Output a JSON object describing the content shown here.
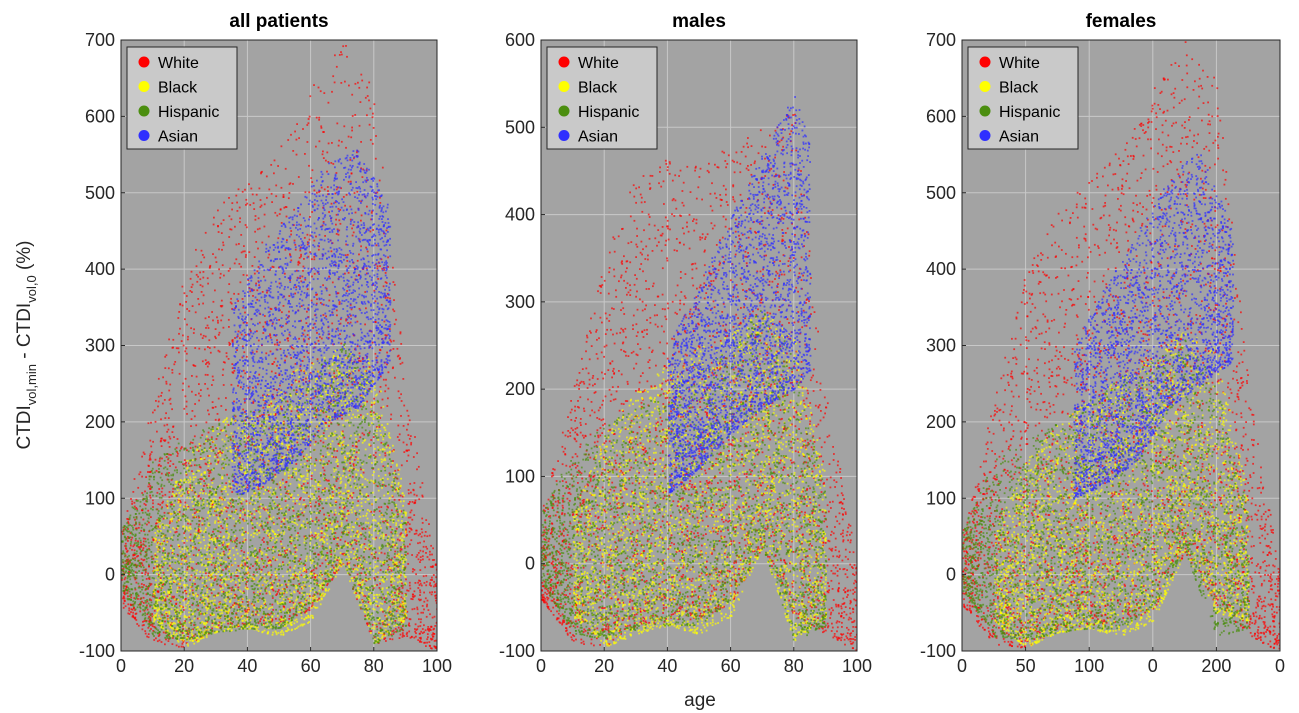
{
  "figure": {
    "shared_xlabel": "age",
    "shared_ylabel": {
      "main1": "CTDI",
      "sub1": "vol,min",
      "mid": " - CTDI",
      "sub2": "vol,0",
      "tail": " (%)"
    },
    "colors": {
      "White": "#ff0000",
      "Black": "#ffff00",
      "Hispanic": "#4b8e0f",
      "Asian": "#2f2fff",
      "axes_bg": "#a3a3a3",
      "grid": "#c8c8c8"
    }
  },
  "chart_data": [
    {
      "type": "scatter",
      "title": "all patients",
      "xlabel": "",
      "ylabel": "CTDI vol,min - CTDI vol,0 (%)",
      "xlim": [
        0,
        100
      ],
      "ylim": [
        -100,
        700
      ],
      "xticks": [
        "0",
        "20",
        "40",
        "60",
        "80",
        "100"
      ],
      "yticks": [
        "-100",
        "0",
        "100",
        "200",
        "300",
        "400",
        "500",
        "600",
        "700"
      ],
      "grid": true,
      "legend_position": "top-left",
      "series": [
        {
          "name": "White",
          "envelope": {
            "x": [
              0,
              10,
              20,
              30,
              40,
              50,
              60,
              70,
              80,
              90,
              100
            ],
            "low": [
              -40,
              -90,
              -95,
              -70,
              -65,
              -62,
              -45,
              15,
              -90,
              -80,
              -100
            ],
            "high": [
              60,
              230,
              400,
              480,
              520,
              560,
              640,
              700,
              640,
              250,
              0
            ]
          }
        },
        {
          "name": "Black",
          "envelope": {
            "x": [
              10,
              20,
              30,
              40,
              50,
              60,
              70,
              80,
              90
            ],
            "low": [
              -60,
              -95,
              -75,
              -70,
              -80,
              -60,
              15,
              -90,
              -60
            ],
            "high": [
              60,
              150,
              200,
              220,
              260,
              280,
              300,
              280,
              100
            ]
          }
        },
        {
          "name": "Hispanic",
          "envelope": {
            "x": [
              0,
              10,
              20,
              30,
              40,
              50,
              60,
              70,
              80,
              90
            ],
            "low": [
              -20,
              -80,
              -85,
              -75,
              -70,
              -70,
              -40,
              15,
              -90,
              -70
            ],
            "high": [
              60,
              150,
              180,
              200,
              220,
              230,
              260,
              310,
              250,
              80
            ]
          }
        },
        {
          "name": "Asian",
          "envelope": {
            "x": [
              35,
              45,
              55,
              65,
              75,
              85
            ],
            "low": [
              100,
              120,
              150,
              200,
              220,
              280
            ],
            "high": [
              350,
              430,
              480,
              540,
              560,
              480
            ]
          }
        }
      ]
    },
    {
      "type": "scatter",
      "title": "males",
      "xlabel": "age",
      "ylabel": "",
      "xlim": [
        0,
        100
      ],
      "ylim": [
        -100,
        600
      ],
      "xticks": [
        "0",
        "20",
        "40",
        "60",
        "80",
        "100"
      ],
      "yticks": [
        "-100",
        "0",
        "100",
        "200",
        "300",
        "400",
        "500",
        "600"
      ],
      "grid": true,
      "legend_position": "top-left",
      "series": [
        {
          "name": "White",
          "envelope": {
            "x": [
              0,
              10,
              20,
              30,
              40,
              50,
              60,
              70,
              80,
              90,
              100
            ],
            "low": [
              -40,
              -90,
              -95,
              -70,
              -65,
              -62,
              -45,
              20,
              -60,
              -80,
              -100
            ],
            "high": [
              60,
              200,
              350,
              450,
              470,
              460,
              480,
              500,
              520,
              200,
              0
            ]
          }
        },
        {
          "name": "Black",
          "envelope": {
            "x": [
              10,
              20,
              30,
              40,
              50,
              60,
              70,
              80,
              90
            ],
            "low": [
              -60,
              -95,
              -80,
              -70,
              -80,
              -60,
              20,
              -90,
              -60
            ],
            "high": [
              60,
              150,
              200,
              230,
              250,
              270,
              290,
              260,
              100
            ]
          }
        },
        {
          "name": "Hispanic",
          "envelope": {
            "x": [
              0,
              10,
              20,
              30,
              40,
              50,
              60,
              70,
              80,
              90
            ],
            "low": [
              -20,
              -80,
              -85,
              -75,
              -70,
              -70,
              -40,
              20,
              -90,
              -70
            ],
            "high": [
              60,
              130,
              160,
              180,
              200,
              220,
              250,
              300,
              240,
              80
            ]
          }
        },
        {
          "name": "Asian",
          "envelope": {
            "x": [
              40,
              50,
              60,
              70,
              80,
              85
            ],
            "low": [
              80,
              110,
              150,
              180,
              200,
              220
            ],
            "high": [
              250,
              320,
              400,
              470,
              540,
              480
            ]
          }
        }
      ]
    },
    {
      "type": "scatter",
      "title": "females",
      "xlabel": "",
      "ylabel": "",
      "xlim": [
        0,
        100
      ],
      "ylim": [
        -100,
        700
      ],
      "xticks": [
        "0",
        "50",
        "100",
        "0",
        "200",
        "0"
      ],
      "yticks": [
        "-100",
        "0",
        "100",
        "200",
        "300",
        "400",
        "500",
        "600",
        "700"
      ],
      "grid": true,
      "legend_position": "top-left",
      "series": [
        {
          "name": "White",
          "envelope": {
            "x": [
              0,
              10,
              20,
              30,
              40,
              50,
              60,
              70,
              80,
              90,
              100
            ],
            "low": [
              -40,
              -90,
              -95,
              -70,
              -65,
              -62,
              -45,
              30,
              -40,
              -80,
              -100
            ],
            "high": [
              60,
              230,
              400,
              480,
              520,
              560,
              640,
              700,
              650,
              250,
              0
            ]
          }
        },
        {
          "name": "Black",
          "envelope": {
            "x": [
              10,
              20,
              30,
              40,
              50,
              60,
              70,
              80,
              90
            ],
            "low": [
              -60,
              -95,
              -75,
              -70,
              -80,
              -60,
              30,
              -50,
              -60
            ],
            "high": [
              60,
              150,
              200,
              230,
              260,
              290,
              320,
              300,
              100
            ]
          }
        },
        {
          "name": "Hispanic",
          "envelope": {
            "x": [
              0,
              10,
              20,
              30,
              40,
              50,
              60,
              70,
              80,
              90
            ],
            "low": [
              -20,
              -80,
              -85,
              -75,
              -70,
              -70,
              -40,
              30,
              -80,
              -70
            ],
            "high": [
              60,
              150,
              180,
              200,
              230,
              260,
              280,
              310,
              250,
              80
            ]
          }
        },
        {
          "name": "Asian",
          "envelope": {
            "x": [
              35,
              45,
              55,
              65,
              75,
              85
            ],
            "low": [
              100,
              120,
              150,
              220,
              250,
              280
            ],
            "high": [
              300,
              380,
              450,
              520,
              560,
              450
            ]
          }
        }
      ]
    }
  ]
}
